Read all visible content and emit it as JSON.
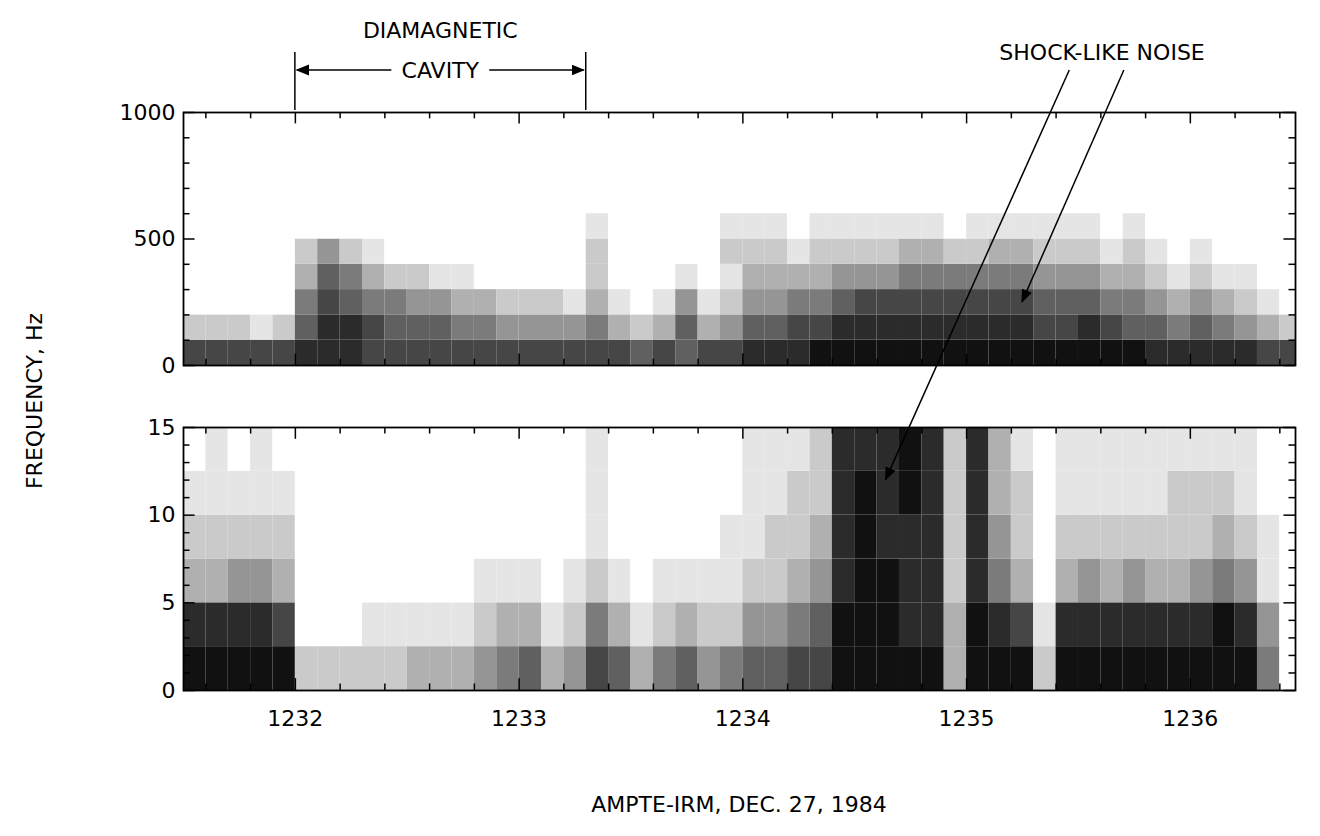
{
  "chart_data": {
    "type": "spectrogram",
    "xlabel": "AMPTE-IRM,  DEC. 27, 1984",
    "ylabel": "FREQUENCY, Hz",
    "xlim": [
      1231.5,
      1236.47
    ],
    "xticks": [
      1232,
      1233,
      1234,
      1235,
      1236
    ],
    "minor_xticks": [
      1231.6,
      1231.8,
      1232.2,
      1232.4,
      1232.6,
      1232.8,
      1233.2,
      1233.4,
      1233.6,
      1233.8,
      1234.2,
      1234.4,
      1234.6,
      1234.8,
      1235.2,
      1235.4,
      1235.6,
      1235.8,
      1236.2,
      1236.4
    ],
    "tick_labels": "x",
    "color_range": [
      0,
      9
    ],
    "colors": [
      "#ffffff",
      "#111111"
    ],
    "x_edges": [
      1231.5,
      1231.6,
      1231.7,
      1231.8,
      1231.9,
      1232.0,
      1232.1,
      1232.2,
      1232.3,
      1232.4,
      1232.5,
      1232.6,
      1232.7,
      1232.8,
      1232.9,
      1233.0,
      1233.1,
      1233.2,
      1233.3,
      1233.4,
      1233.5,
      1233.6,
      1233.7,
      1233.8,
      1233.9,
      1234.0,
      1234.1,
      1234.2,
      1234.3,
      1234.4,
      1234.5,
      1234.6,
      1234.7,
      1234.8,
      1234.9,
      1235.0,
      1235.1,
      1235.2,
      1235.3,
      1235.4,
      1235.5,
      1235.6,
      1235.7,
      1235.8,
      1235.9,
      1236.0,
      1236.1,
      1236.2,
      1236.3,
      1236.4,
      1236.5
    ],
    "panels": [
      {
        "ylim": [
          0,
          1000
        ],
        "yticks": [
          0,
          500,
          1000
        ],
        "minor_yticks": [
          100,
          200,
          300,
          400,
          600,
          700,
          800,
          900
        ],
        "y_edges": [
          0,
          100,
          200,
          300,
          400,
          500,
          600
        ],
        "cells": [
          [
            7,
            7,
            7,
            7,
            7,
            8,
            8,
            8,
            7,
            7,
            7,
            7,
            7,
            7,
            7,
            7,
            7,
            7,
            7,
            7,
            6,
            7,
            6,
            7,
            7,
            8,
            8,
            8,
            9,
            9,
            9,
            9,
            9,
            9,
            9,
            9,
            9,
            9,
            9,
            9,
            9,
            9,
            9,
            8,
            8,
            8,
            8,
            8,
            7,
            7
          ],
          [
            2,
            2,
            2,
            1,
            2,
            6,
            8,
            8,
            7,
            6,
            6,
            6,
            5,
            5,
            4,
            4,
            4,
            4,
            5,
            3,
            2,
            3,
            6,
            3,
            4,
            6,
            6,
            7,
            7,
            8,
            8,
            8,
            8,
            8,
            8,
            8,
            8,
            8,
            7,
            7,
            8,
            7,
            6,
            6,
            5,
            6,
            5,
            4,
            3,
            2
          ],
          [
            0,
            0,
            0,
            0,
            0,
            5,
            7,
            6,
            5,
            5,
            4,
            4,
            3,
            3,
            2,
            2,
            2,
            1,
            3,
            1,
            0,
            1,
            4,
            1,
            2,
            4,
            4,
            5,
            5,
            6,
            7,
            7,
            7,
            7,
            7,
            7,
            7,
            7,
            6,
            6,
            6,
            5,
            5,
            4,
            3,
            4,
            3,
            2,
            1,
            0
          ],
          [
            0,
            0,
            0,
            0,
            0,
            3,
            6,
            5,
            3,
            2,
            2,
            1,
            1,
            0,
            0,
            0,
            0,
            0,
            2,
            0,
            0,
            0,
            1,
            0,
            1,
            3,
            3,
            3,
            3,
            4,
            4,
            4,
            5,
            5,
            5,
            5,
            5,
            5,
            4,
            4,
            4,
            3,
            3,
            2,
            1,
            2,
            1,
            1,
            0,
            0
          ],
          [
            0,
            0,
            0,
            0,
            0,
            2,
            4,
            2,
            1,
            0,
            0,
            0,
            0,
            0,
            0,
            0,
            0,
            0,
            2,
            0,
            0,
            0,
            0,
            0,
            2,
            2,
            2,
            1,
            2,
            2,
            2,
            2,
            3,
            3,
            2,
            2,
            3,
            3,
            2,
            2,
            2,
            1,
            2,
            1,
            0,
            1,
            0,
            0,
            0,
            0
          ],
          [
            0,
            0,
            0,
            0,
            0,
            0,
            0,
            0,
            0,
            0,
            0,
            0,
            0,
            0,
            0,
            0,
            0,
            0,
            1,
            0,
            0,
            0,
            0,
            0,
            1,
            1,
            1,
            0,
            1,
            1,
            1,
            1,
            1,
            1,
            0,
            1,
            1,
            1,
            1,
            1,
            1,
            0,
            1,
            0,
            0,
            0,
            0,
            0,
            0,
            0
          ]
        ]
      },
      {
        "ylim": [
          0,
          15
        ],
        "yticks": [
          0,
          5,
          10,
          15
        ],
        "minor_yticks": [
          1,
          2,
          3,
          4,
          6,
          7,
          8,
          9,
          11,
          12,
          13,
          14
        ],
        "y_edges": [
          0,
          2.5,
          5,
          7.5,
          10,
          12.5,
          15
        ],
        "cells": [
          [
            9,
            9,
            9,
            9,
            9,
            2,
            2,
            2,
            2,
            2,
            3,
            3,
            3,
            4,
            5,
            6,
            3,
            4,
            7,
            6,
            3,
            5,
            6,
            4,
            5,
            6,
            6,
            7,
            7,
            9,
            9,
            9,
            9,
            9,
            3,
            9,
            9,
            9,
            2,
            9,
            9,
            9,
            9,
            9,
            9,
            9,
            9,
            9,
            5,
            0
          ],
          [
            8,
            8,
            8,
            8,
            7,
            0,
            0,
            0,
            1,
            1,
            1,
            1,
            1,
            2,
            3,
            3,
            1,
            2,
            5,
            3,
            1,
            2,
            3,
            2,
            2,
            4,
            4,
            5,
            6,
            9,
            9,
            9,
            8,
            8,
            3,
            9,
            8,
            7,
            1,
            8,
            8,
            8,
            8,
            8,
            8,
            8,
            9,
            8,
            4,
            0
          ],
          [
            3,
            3,
            4,
            4,
            3,
            0,
            0,
            0,
            0,
            0,
            0,
            0,
            0,
            1,
            1,
            1,
            0,
            1,
            2,
            1,
            0,
            1,
            1,
            1,
            1,
            2,
            2,
            3,
            4,
            8,
            9,
            9,
            8,
            8,
            2,
            8,
            5,
            3,
            0,
            3,
            4,
            3,
            4,
            3,
            3,
            4,
            5,
            4,
            1,
            0
          ],
          [
            2,
            2,
            2,
            2,
            2,
            0,
            0,
            0,
            0,
            0,
            0,
            0,
            0,
            0,
            0,
            0,
            0,
            0,
            1,
            0,
            0,
            0,
            0,
            0,
            1,
            1,
            2,
            2,
            3,
            8,
            9,
            8,
            8,
            8,
            2,
            8,
            4,
            2,
            0,
            2,
            2,
            2,
            2,
            2,
            2,
            2,
            3,
            2,
            1,
            0
          ],
          [
            1,
            1,
            1,
            1,
            1,
            0,
            0,
            0,
            0,
            0,
            0,
            0,
            0,
            0,
            0,
            0,
            0,
            0,
            1,
            0,
            0,
            0,
            0,
            0,
            0,
            1,
            1,
            2,
            2,
            8,
            9,
            8,
            9,
            8,
            2,
            8,
            3,
            2,
            0,
            1,
            1,
            1,
            1,
            1,
            2,
            2,
            2,
            1,
            0,
            0
          ],
          [
            0,
            1,
            0,
            1,
            0,
            0,
            0,
            0,
            0,
            0,
            0,
            0,
            0,
            0,
            0,
            0,
            0,
            0,
            1,
            0,
            0,
            0,
            0,
            0,
            0,
            1,
            1,
            1,
            2,
            8,
            8,
            8,
            9,
            8,
            2,
            8,
            3,
            1,
            0,
            1,
            1,
            1,
            1,
            1,
            1,
            1,
            1,
            1,
            0,
            0
          ]
        ]
      }
    ],
    "annotations": [
      {
        "text": "DIAMAGNETIC CAVITY",
        "x_span": [
          1232.0,
          1233.3
        ]
      },
      {
        "text": "SHOCK-LIKE NOISE",
        "targets": [
          {
            "panel": 1,
            "x": 1234.64,
            "y": 12
          },
          {
            "panel": 0,
            "x": 1235.25,
            "y": 250
          }
        ]
      }
    ]
  }
}
